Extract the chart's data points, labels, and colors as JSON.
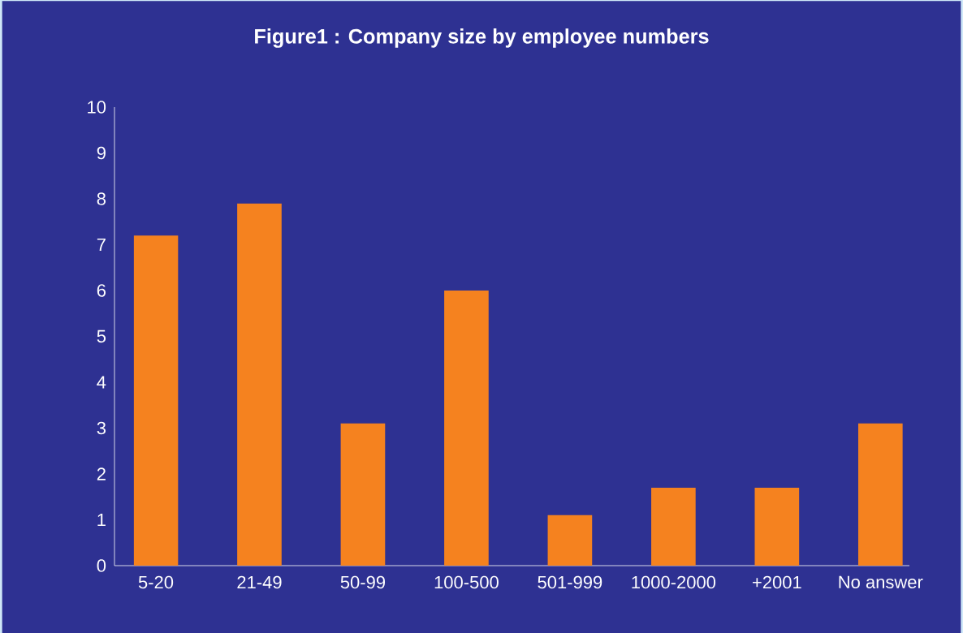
{
  "chart_data": {
    "type": "bar",
    "title": "Figure1 : Company size by employee numbers",
    "categories": [
      "5-20",
      "21-49",
      "50-99",
      "100-500",
      "501-999",
      "1000-2000",
      "+2001",
      "No answer"
    ],
    "values": [
      7.2,
      7.9,
      3.1,
      6.0,
      1.1,
      1.7,
      1.7,
      3.1
    ],
    "color": "#f5821f",
    "ylim": [
      0,
      10
    ],
    "yticks": [
      0,
      1,
      2,
      3,
      4,
      5,
      6,
      7,
      8,
      9,
      10
    ]
  }
}
